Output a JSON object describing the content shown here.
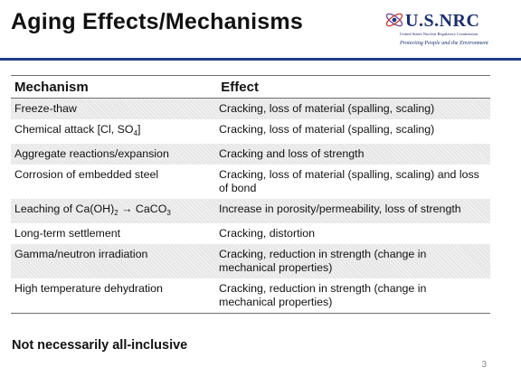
{
  "slide": {
    "title": "Aging Effects/Mechanisms",
    "footnote": "Not necessarily all-inclusive",
    "page_number": "3"
  },
  "logo": {
    "name": "U.S.NRC",
    "agency": "United States Nuclear Regulatory Commission",
    "tagline": "Protecting People and the Environment"
  },
  "table": {
    "headers": [
      "Mechanism",
      "Effect"
    ],
    "rows": [
      {
        "mechanism": "Freeze-thaw",
        "effect": "Cracking, loss of material (spalling, scaling)",
        "shaded": true
      },
      {
        "mechanism_parts": [
          "Chemical attack [Cl, SO",
          "4",
          "]"
        ],
        "effect": "Cracking, loss of material (spalling, scaling)",
        "shaded": false
      },
      {
        "mechanism": "Aggregate reactions/expansion",
        "effect": "Cracking and loss of strength",
        "shaded": true
      },
      {
        "mechanism": "Corrosion of embedded steel",
        "effect": "Cracking, loss of material (spalling, scaling) and loss of bond",
        "shaded": false
      },
      {
        "mechanism_parts": [
          "Leaching of Ca(OH)",
          "2",
          " → CaCO",
          "3"
        ],
        "effect": "Increase in porosity/permeability, loss of strength",
        "shaded": true
      },
      {
        "mechanism": "Long-term settlement",
        "effect": "Cracking, distortion",
        "shaded": false
      },
      {
        "mechanism": "Gamma/neutron irradiation",
        "effect": "Cracking, reduction in strength (change in mechanical properties)",
        "shaded": true
      },
      {
        "mechanism": "High temperature dehydration",
        "effect": "Cracking, reduction in strength (change in mechanical properties)",
        "shaded": false
      }
    ]
  },
  "colors": {
    "rule": "#1f3c88",
    "logo_text": "#1b2f6e",
    "row_shade": "#e6e6e6"
  }
}
